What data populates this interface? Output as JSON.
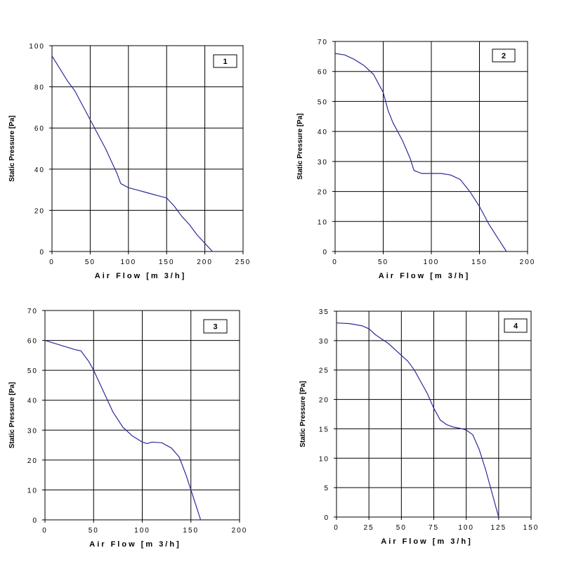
{
  "chart_data": [
    {
      "type": "line",
      "label": "1",
      "xlabel": "Air Flow [m 3/h]",
      "ylabel": "Static Pressure [Pa]",
      "xlim": [
        0,
        250
      ],
      "ylim": [
        0,
        100
      ],
      "xticks": [
        0,
        50,
        100,
        150,
        200,
        250
      ],
      "yticks": [
        0,
        20,
        40,
        60,
        80,
        100
      ],
      "xtick_labels": [
        "0",
        "50",
        "100",
        "150",
        "200",
        "250"
      ],
      "ytick_labels": [
        "0",
        "20",
        "40",
        "60",
        "80",
        "100"
      ],
      "grid": true,
      "x": [
        0,
        10,
        20,
        30,
        40,
        50,
        60,
        70,
        80,
        85,
        90,
        100,
        110,
        120,
        130,
        140,
        150,
        160,
        170,
        180,
        190,
        200,
        210,
        214
      ],
      "y": [
        95,
        89,
        83,
        78,
        71,
        64,
        57,
        50,
        42,
        38,
        33,
        31,
        30,
        29,
        28,
        27,
        26,
        22,
        17,
        13,
        8,
        4,
        0,
        0
      ]
    },
    {
      "type": "line",
      "label": "2",
      "xlabel": "Air Flow [m 3/h]",
      "ylabel": "Static Pressure [Pa]",
      "xlim": [
        0,
        200
      ],
      "ylim": [
        0,
        70
      ],
      "xticks": [
        0,
        50,
        100,
        150,
        200
      ],
      "yticks": [
        0,
        10,
        20,
        30,
        40,
        50,
        60,
        70
      ],
      "xtick_labels": [
        "0",
        "50",
        "100",
        "150",
        "200"
      ],
      "ytick_labels": [
        "0",
        "10",
        "20",
        "30",
        "40",
        "50",
        "60",
        "70"
      ],
      "grid": true,
      "x": [
        0,
        10,
        20,
        30,
        40,
        45,
        50,
        55,
        60,
        70,
        78,
        82,
        90,
        100,
        110,
        120,
        130,
        140,
        150,
        160,
        170,
        178
      ],
      "y": [
        66,
        65.5,
        64,
        62,
        59,
        56,
        53,
        47,
        43,
        37,
        31,
        27,
        26,
        26,
        26,
        25.5,
        24,
        20,
        15,
        9,
        4,
        0
      ]
    },
    {
      "type": "line",
      "label": "3",
      "xlabel": "Air Flow [m 3/h]",
      "ylabel": "Static Pressure [Pa]",
      "xlim": [
        0,
        200
      ],
      "ylim": [
        0,
        70
      ],
      "xticks": [
        0,
        50,
        100,
        150,
        200
      ],
      "yticks": [
        0,
        10,
        20,
        30,
        40,
        50,
        60,
        70
      ],
      "xtick_labels": [
        "0",
        "50",
        "100",
        "150",
        "200"
      ],
      "ytick_labels": [
        "0",
        "10",
        "20",
        "30",
        "40",
        "50",
        "60",
        "70"
      ],
      "grid": true,
      "x": [
        0,
        10,
        20,
        30,
        37,
        45,
        50,
        60,
        70,
        80,
        90,
        100,
        105,
        110,
        120,
        130,
        138,
        145,
        150,
        155,
        160
      ],
      "y": [
        60,
        59,
        58,
        57,
        56.5,
        53,
        50,
        43,
        36,
        31,
        28,
        26,
        25.5,
        26,
        25.8,
        24,
        21,
        15,
        10,
        5,
        0
      ]
    },
    {
      "type": "line",
      "label": "4",
      "xlabel": "Air Flow [m 3/h]",
      "ylabel": "Static Pressure [Pa]",
      "xlim": [
        0,
        150
      ],
      "ylim": [
        0,
        35
      ],
      "xticks": [
        0,
        25,
        50,
        75,
        100,
        125,
        150
      ],
      "yticks": [
        0,
        5,
        10,
        15,
        20,
        25,
        30,
        35
      ],
      "xtick_labels": [
        "0",
        "25",
        "50",
        "75",
        "100",
        "125",
        "150"
      ],
      "ytick_labels": [
        "0",
        "5",
        "10",
        "15",
        "20",
        "25",
        "30",
        "35"
      ],
      "grid": true,
      "x": [
        0,
        10,
        20,
        25,
        30,
        40,
        50,
        55,
        60,
        65,
        70,
        75,
        80,
        85,
        90,
        95,
        100,
        105,
        110,
        115,
        120,
        125
      ],
      "y": [
        33,
        32.9,
        32.5,
        32,
        31,
        29.5,
        27.5,
        26.5,
        25,
        23,
        21,
        18.5,
        16.5,
        15.7,
        15.3,
        15.1,
        14.8,
        14,
        11.5,
        8,
        4,
        0
      ]
    }
  ]
}
